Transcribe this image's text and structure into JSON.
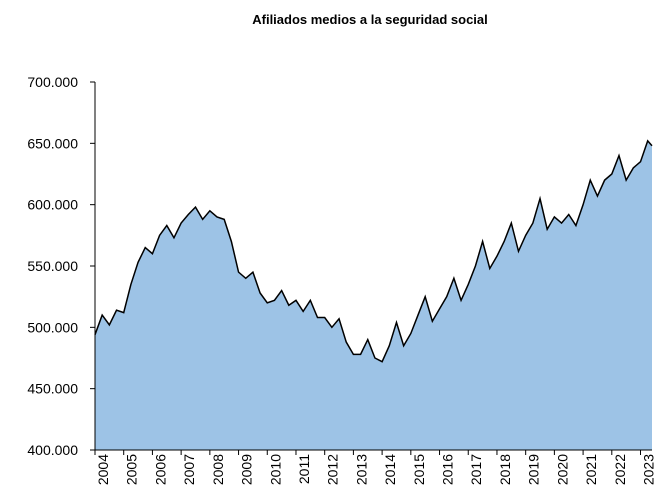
{
  "chart_data": {
    "type": "area",
    "title": "Afiliados medios a la seguridad social",
    "x": [
      2004,
      2004.25,
      2004.5,
      2004.75,
      2005,
      2005.25,
      2005.5,
      2005.75,
      2006,
      2006.25,
      2006.5,
      2006.75,
      2007,
      2007.25,
      2007.5,
      2007.75,
      2008,
      2008.25,
      2008.5,
      2008.75,
      2009,
      2009.25,
      2009.5,
      2009.75,
      2010,
      2010.25,
      2010.5,
      2010.75,
      2011,
      2011.25,
      2011.5,
      2011.75,
      2012,
      2012.25,
      2012.5,
      2012.75,
      2013,
      2013.25,
      2013.5,
      2013.75,
      2014,
      2014.25,
      2014.5,
      2014.75,
      2015,
      2015.25,
      2015.5,
      2015.75,
      2016,
      2016.25,
      2016.5,
      2016.75,
      2017,
      2017.25,
      2017.5,
      2017.75,
      2018,
      2018.25,
      2018.5,
      2018.75,
      2019,
      2019.25,
      2019.5,
      2019.75,
      2020,
      2020.25,
      2020.5,
      2020.75,
      2021,
      2021.25,
      2021.5,
      2021.75,
      2022,
      2022.25,
      2022.5,
      2022.75,
      2023,
      2023.25,
      2023.4
    ],
    "series": [
      {
        "name": "Afiliados",
        "color": "#9dc3e6",
        "values": [
          494000,
          510000,
          502000,
          514000,
          512000,
          535000,
          553000,
          565000,
          560000,
          575000,
          583000,
          573000,
          585000,
          592000,
          598000,
          588000,
          595000,
          590000,
          588000,
          570000,
          545000,
          540000,
          545000,
          528000,
          520000,
          522000,
          530000,
          518000,
          522000,
          513000,
          522000,
          508000,
          508000,
          500000,
          507000,
          488000,
          478000,
          478000,
          490000,
          475000,
          472000,
          485000,
          504000,
          485000,
          495000,
          510000,
          525000,
          505000,
          515000,
          525000,
          540000,
          522000,
          535000,
          550000,
          570000,
          548000,
          558000,
          570000,
          585000,
          562000,
          575000,
          585000,
          605000,
          580000,
          590000,
          585000,
          592000,
          583000,
          600000,
          620000,
          607000,
          620000,
          625000,
          640000,
          620000,
          630000,
          635000,
          652000,
          648000
        ]
      }
    ],
    "xlim": [
      2004,
      2023.4
    ],
    "xticks": [
      2004,
      2005,
      2006,
      2007,
      2008,
      2009,
      2010,
      2011,
      2012,
      2013,
      2014,
      2015,
      2016,
      2017,
      2018,
      2019,
      2020,
      2021,
      2022,
      2023
    ],
    "ylim": [
      400000,
      700000
    ],
    "yticks": [
      {
        "value": 400000,
        "label": "400.000"
      },
      {
        "value": 450000,
        "label": "450.000"
      },
      {
        "value": 500000,
        "label": "500.000"
      },
      {
        "value": 550000,
        "label": "550.000"
      },
      {
        "value": 600000,
        "label": "600.000"
      },
      {
        "value": 650000,
        "label": "650.000"
      },
      {
        "value": 700000,
        "label": "700.000"
      }
    ]
  }
}
